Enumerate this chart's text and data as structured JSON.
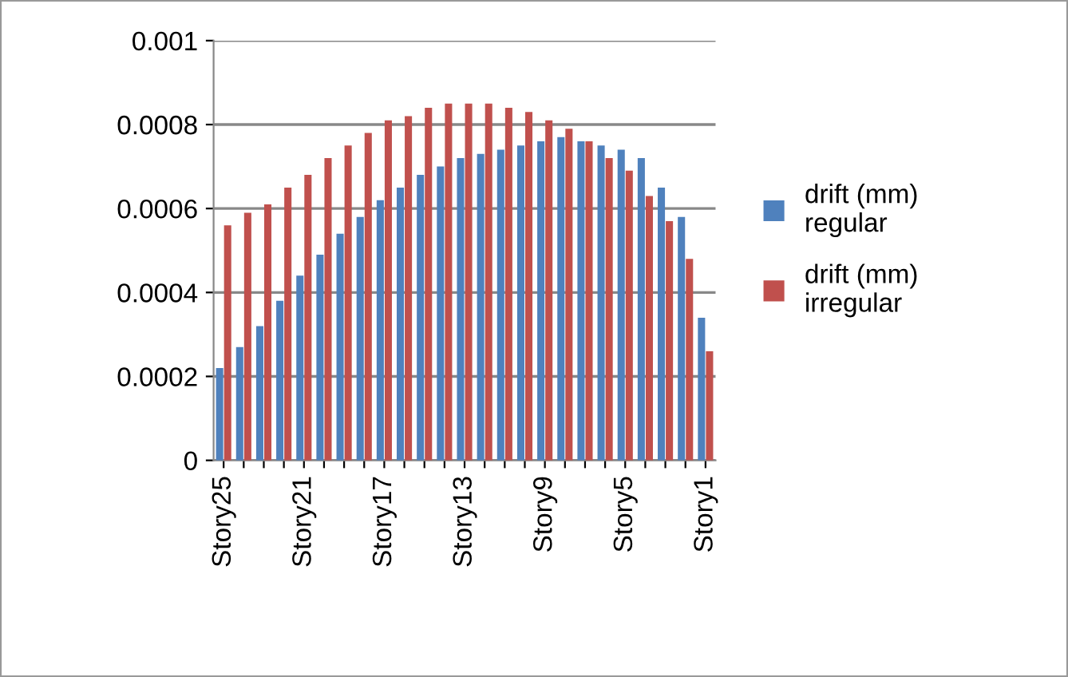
{
  "chart_data": {
    "type": "bar",
    "categories": [
      "Story25",
      null,
      null,
      null,
      "Story21",
      null,
      null,
      null,
      "Story17",
      null,
      null,
      null,
      "Story13",
      null,
      null,
      null,
      "Story9",
      null,
      null,
      null,
      "Story5",
      null,
      null,
      null,
      "Story1"
    ],
    "series": [
      {
        "name": "drift (mm) regular",
        "color": "#4f81bd",
        "values": [
          0.00022,
          0.00027,
          0.00032,
          0.00038,
          0.00044,
          0.00049,
          0.00054,
          0.00058,
          0.00062,
          0.00065,
          0.00068,
          0.0007,
          0.00072,
          0.00073,
          0.00074,
          0.00075,
          0.00076,
          0.00077,
          0.00076,
          0.00075,
          0.00074,
          0.00072,
          0.00065,
          0.00058,
          0.00034
        ]
      },
      {
        "name": "drift (mm) irregular",
        "color": "#c0504d",
        "values": [
          0.00056,
          0.00059,
          0.00061,
          0.00065,
          0.00068,
          0.00072,
          0.00075,
          0.00078,
          0.00081,
          0.00082,
          0.00084,
          0.00085,
          0.00085,
          0.00085,
          0.00084,
          0.00083,
          0.00081,
          0.00079,
          0.00076,
          0.00072,
          0.00069,
          0.00063,
          0.00057,
          0.00048,
          0.00026
        ]
      }
    ],
    "ylim": [
      0,
      0.001
    ],
    "yticks": [
      0,
      0.0002,
      0.0004,
      0.0006,
      0.0008,
      0.001
    ],
    "grid": "y",
    "legend": "right"
  }
}
